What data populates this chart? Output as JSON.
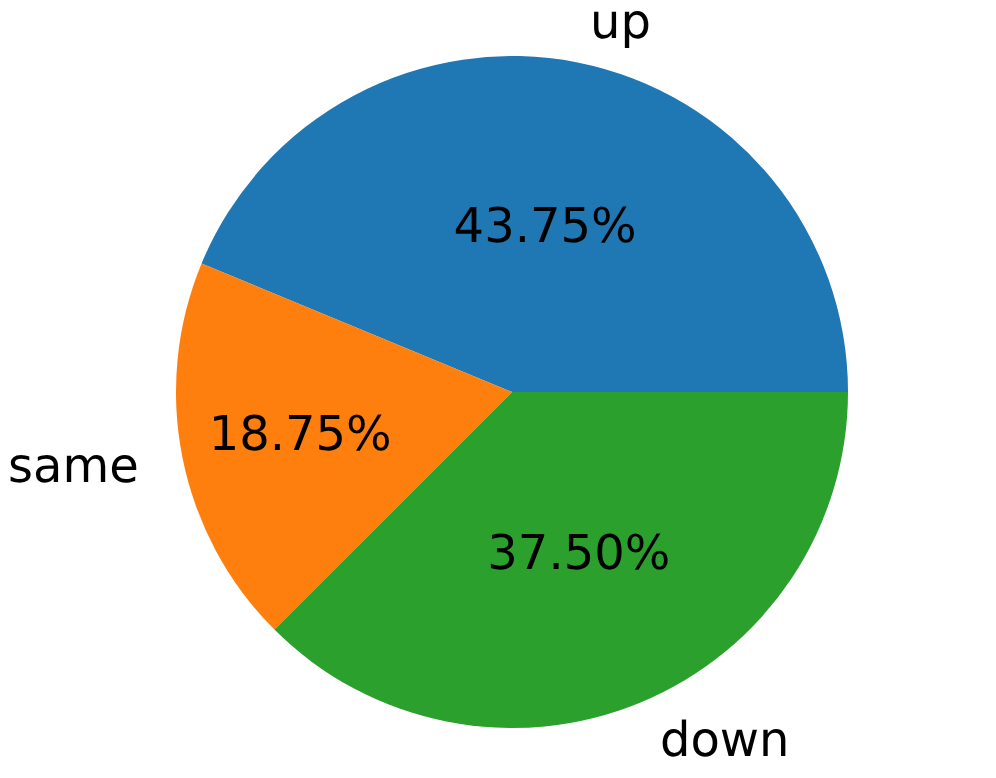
{
  "chart_data": {
    "type": "pie",
    "categories": [
      "up",
      "same",
      "down"
    ],
    "values": [
      43.75,
      18.75,
      37.5
    ],
    "colors": [
      "#1f77b4",
      "#ff7f0e",
      "#2ca02c"
    ],
    "value_labels": [
      "43.75%",
      "18.75%",
      "37.50%"
    ]
  }
}
